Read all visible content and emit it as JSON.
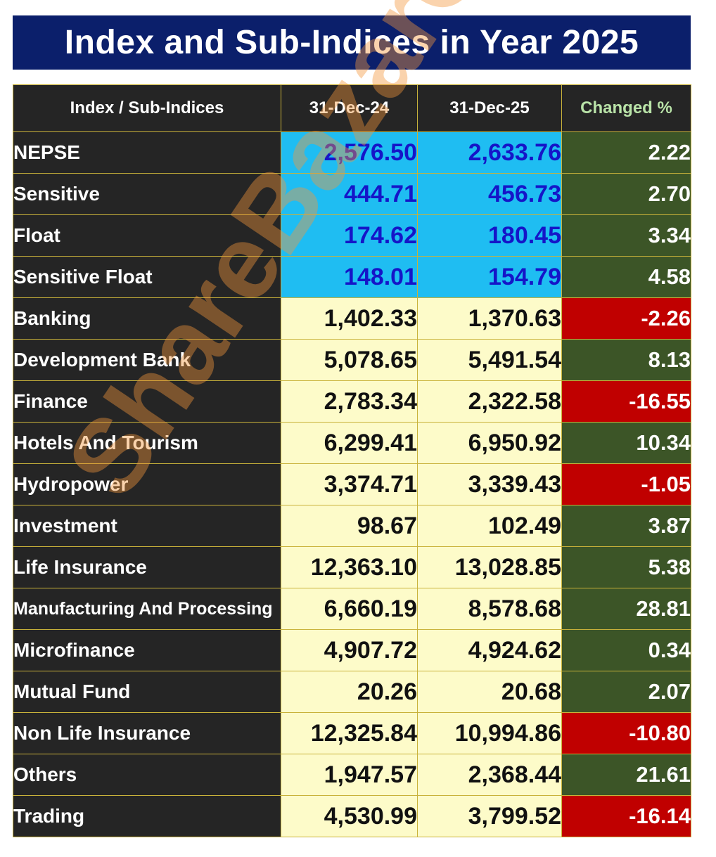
{
  "chart_data": {
    "type": "table",
    "title": "Index and Sub-Indices in Year 2025",
    "columns": [
      "Index / Sub-Indices",
      "31-Dec-24",
      "31-Dec-25",
      "Changed %"
    ],
    "rows": [
      {
        "name": "NEPSE",
        "d24": "2,576.50",
        "d25": "2,633.76",
        "chg": "2.22"
      },
      {
        "name": "Sensitive",
        "d24": "444.71",
        "d25": "456.73",
        "chg": "2.70"
      },
      {
        "name": "Float",
        "d24": "174.62",
        "d25": "180.45",
        "chg": "3.34"
      },
      {
        "name": "Sensitive Float",
        "d24": "148.01",
        "d25": "154.79",
        "chg": "4.58"
      },
      {
        "name": "Banking",
        "d24": "1,402.33",
        "d25": "1,370.63",
        "chg": "-2.26"
      },
      {
        "name": "Development Bank",
        "d24": "5,078.65",
        "d25": "5,491.54",
        "chg": "8.13"
      },
      {
        "name": "Finance",
        "d24": "2,783.34",
        "d25": "2,322.58",
        "chg": "-16.55"
      },
      {
        "name": "Hotels And Tourism",
        "d24": "6,299.41",
        "d25": "6,950.92",
        "chg": "10.34"
      },
      {
        "name": "Hydropower",
        "d24": "3,374.71",
        "d25": "3,339.43",
        "chg": "-1.05"
      },
      {
        "name": "Investment",
        "d24": "98.67",
        "d25": "102.49",
        "chg": "3.87"
      },
      {
        "name": "Life Insurance",
        "d24": "12,363.10",
        "d25": "13,028.85",
        "chg": "5.38"
      },
      {
        "name": "Manufacturing And Processing",
        "d24": "6,660.19",
        "d25": "8,578.68",
        "chg": "28.81"
      },
      {
        "name": "Microfinance",
        "d24": "4,907.72",
        "d25": "4,924.62",
        "chg": "0.34"
      },
      {
        "name": "Mutual Fund",
        "d24": "20.26",
        "d25": "20.68",
        "chg": "2.07"
      },
      {
        "name": "Non Life Insurance",
        "d24": "12,325.84",
        "d25": "10,994.86",
        "chg": "-10.80"
      },
      {
        "name": "Others",
        "d24": "1,947.57",
        "d25": "2,368.44",
        "chg": "21.61"
      },
      {
        "name": "Trading",
        "d24": "4,530.99",
        "d25": "3,799.52",
        "chg": "-16.14"
      }
    ],
    "highlighted_rows": [
      "NEPSE",
      "Sensitive",
      "Float",
      "Sensitive Float"
    ]
  },
  "watermark": "ShareBazarGyaNDD",
  "colors": {
    "title_background": "#0b1f6b",
    "header_background": "#252525",
    "main_index_cell": "#1fbdf2",
    "main_index_text": "#1515c8",
    "sub_index_cell": "#fdfbc9",
    "positive_change": "#3c5527",
    "negative_change": "#c00000"
  }
}
